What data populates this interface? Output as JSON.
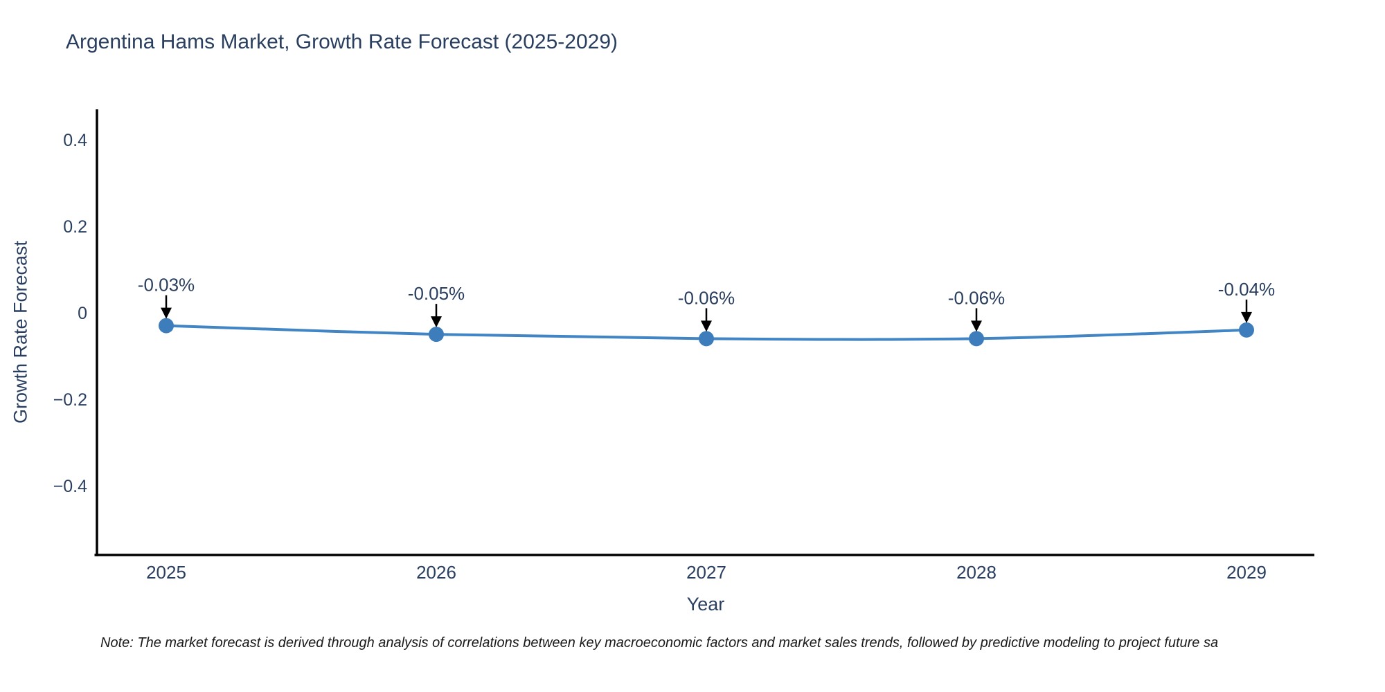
{
  "note": "Note: The market forecast is derived through analysis of correlations between key macroeconomic factors and market sales trends, followed by predictive modeling to project future sa",
  "chart_data": {
    "type": "line",
    "title": "Argentina Hams Market, Growth Rate Forecast (2025-2029)",
    "xlabel": "Year",
    "ylabel": "Growth Rate Forecast",
    "categories": [
      "2025",
      "2026",
      "2027",
      "2028",
      "2029"
    ],
    "values": [
      -0.03,
      -0.05,
      -0.06,
      -0.06,
      -0.04
    ],
    "point_labels": [
      "-0.03%",
      "-0.05%",
      "-0.06%",
      "-0.06%",
      "-0.04%"
    ],
    "yticks": [
      {
        "value": 0.4,
        "label": "0.4"
      },
      {
        "value": 0.2,
        "label": "0.2"
      },
      {
        "value": 0,
        "label": "0"
      },
      {
        "value": -0.2,
        "label": "−0.2"
      },
      {
        "value": -0.4,
        "label": "−0.4"
      }
    ],
    "ylim": [
      -0.56,
      0.47
    ],
    "grid": false,
    "legend": "none",
    "colors": {
      "line": "#4285c4",
      "marker": "#3d7dbc",
      "arrow": "#000000",
      "text": "#2a3f5f",
      "axis": "#000000",
      "note_text": "#1a1a1a",
      "background": "#ffffff"
    }
  }
}
